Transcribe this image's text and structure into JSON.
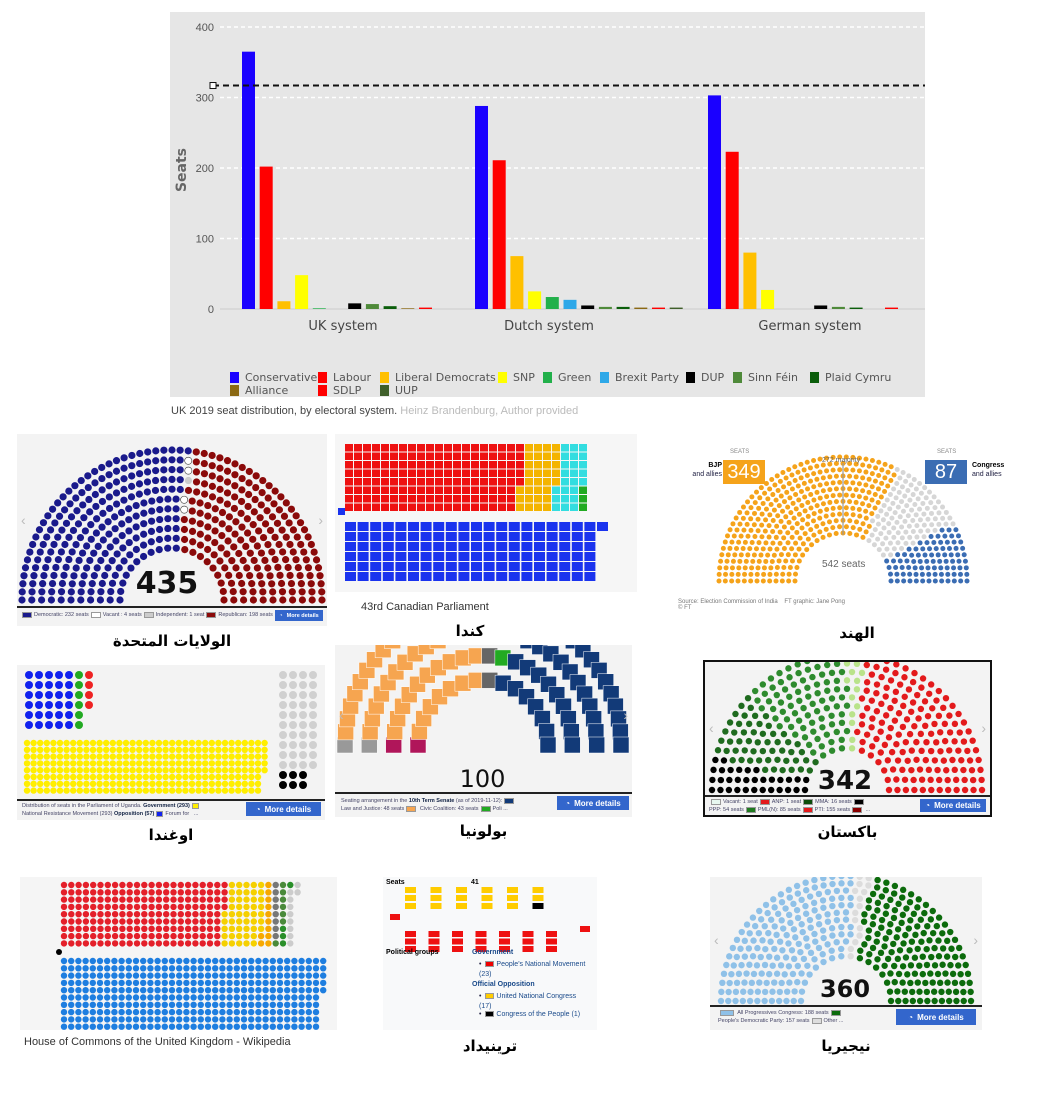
{
  "chart_data": {
    "type": "bar",
    "ylabel": "Seats",
    "ylim": [
      0,
      400
    ],
    "yticks": [
      0,
      100,
      200,
      300,
      400
    ],
    "grid": true,
    "majority_line": 317,
    "legend_position": "bottom",
    "categories": [
      "UK system",
      "Dutch system",
      "German system"
    ],
    "series": [
      {
        "name": "Conservative",
        "color": "#1a00ff",
        "values": [
          365,
          288,
          303
        ]
      },
      {
        "name": "Labour",
        "color": "#ff0000",
        "values": [
          202,
          211,
          223
        ]
      },
      {
        "name": "Liberal Democrats",
        "color": "#ffc000",
        "values": [
          11,
          75,
          80
        ]
      },
      {
        "name": "SNP",
        "color": "#ffff00",
        "values": [
          48,
          25,
          27
        ]
      },
      {
        "name": "Green",
        "color": "#22b04b",
        "values": [
          1,
          17,
          0
        ]
      },
      {
        "name": "Brexit Party",
        "color": "#2ea8e8",
        "values": [
          0,
          13,
          0
        ]
      },
      {
        "name": "DUP",
        "color": "#000000",
        "values": [
          8,
          5,
          5
        ]
      },
      {
        "name": "Sinn Féin",
        "color": "#4f8a3a",
        "values": [
          7,
          3,
          3
        ]
      },
      {
        "name": "Plaid Cymru",
        "color": "#0b5e0b",
        "values": [
          4,
          3,
          2
        ]
      },
      {
        "name": "Alliance",
        "color": "#8b6914",
        "values": [
          1,
          2,
          0
        ]
      },
      {
        "name": "SDLP",
        "color": "#ff0000",
        "values": [
          2,
          2,
          2
        ]
      },
      {
        "name": "UUP",
        "color": "#3f5f2a",
        "values": [
          0,
          2,
          0
        ]
      }
    ],
    "caption": "UK 2019 seat distribution, by electoral system.",
    "credit": "Heinz Brandenburg, Author provided"
  },
  "usa": {
    "total": "435",
    "title": "الولايات المتحدة",
    "more": "More details",
    "legend": [
      "Democratic: 232 seats",
      "Vacant : 4 seats",
      "Independent: 1 seat",
      "Republican: 198 seats"
    ],
    "parties": [
      {
        "color": "#1a1a8c",
        "seats": 232
      },
      {
        "color": "#ffffff",
        "seats": 4
      },
      {
        "color": "#cccccc",
        "seats": 1
      },
      {
        "color": "#8b0a0a",
        "seats": 198
      }
    ]
  },
  "canada": {
    "caption": "43rd Canadian Parliament",
    "title": "كندا",
    "top": [
      {
        "color": "#ee1111",
        "seats": 157
      },
      {
        "color": "#f4b400",
        "seats": 32
      },
      {
        "color": "#33dde0",
        "seats": 24
      },
      {
        "color": "#22aa22",
        "seats": 3
      }
    ],
    "bottom": [
      {
        "color": "#1a33ee",
        "seats": 121
      }
    ],
    "independent": {
      "color": "#1a33ee",
      "seats": 1
    }
  },
  "india": {
    "title": "الهند",
    "seats_label": "SEATS",
    "bjp_value": "349",
    "bjp_label1": "BJP",
    "bjp_label2": "and allies",
    "cong_value": "87",
    "cong_label1": "Congress",
    "cong_label2": "and allies",
    "majority": "272 majority",
    "total": "542 seats",
    "source": "Source: Election Commission of India",
    "graphic": "FT graphic: Jane Pong",
    "copyright": "© FT",
    "parties": [
      {
        "color": "#f5a31a",
        "seats": 349
      },
      {
        "color": "#d6d6d6",
        "seats": 106
      },
      {
        "color": "#3b6db3",
        "seats": 87
      }
    ]
  },
  "uganda": {
    "title": "اوغندا",
    "more": "More details",
    "legend1": "Distribution of seats in the Parliament of Uganda.",
    "gov": "Government",
    "gov_n": "(293)",
    "legend2": "National Resistance Movement",
    "legend2n": "(293)",
    "opp": "Opposition",
    "opp_n": "(57)",
    "legend3": "Forum for",
    "ellipsis": "...",
    "blue": 30,
    "green": 6,
    "red": 4,
    "yellow": 293,
    "grey": 40,
    "black": 6
  },
  "poland": {
    "title": "بولونيا",
    "total": "100",
    "more": "More details",
    "legend1a": "Seating arrangement in the",
    "legend1b": "10th Term Senate",
    "legend1c": "(as of 2019-11-12):",
    "legend2a": "Law and Justice: 48 seats",
    "legend2b": "Civic Coalition: 43 seats",
    "legend2c": "Poli",
    "ellipsis": "...",
    "parties": [
      {
        "color": "#b0165a",
        "seats": 2
      },
      {
        "color": "#999999",
        "seats": 2
      },
      {
        "color": "#f6a550",
        "seats": 48
      },
      {
        "color": "#666666",
        "seats": 2
      },
      {
        "color": "#22aa22",
        "seats": 3
      },
      {
        "color": "#123a78",
        "seats": 43
      }
    ]
  },
  "pakistan": {
    "title": "باكستان",
    "total": "342",
    "more": "More details",
    "legend": [
      "Vacant: 1 seat",
      "ANP: 1 seat",
      "MMA: 16 seats",
      "PPP: 54 seats",
      "PML(N): 85 seats",
      "PTI: 155 seats"
    ],
    "ellipsis": "...",
    "parties": [
      {
        "color": "#000000",
        "seats": 32
      },
      {
        "color": "#1f6b1f",
        "seats": 54
      },
      {
        "color": "#2e8b2e",
        "seats": 85
      },
      {
        "color": "#b9e38a",
        "seats": 16
      },
      {
        "color": "#e31a1c",
        "seats": 155
      }
    ]
  },
  "ukcommons": {
    "caption": "House of Commons of the United Kingdom - Wikipedia",
    "top": [
      {
        "color": "#e4202a",
        "seats": 202
      },
      {
        "color": "#f5d000",
        "seats": 48
      },
      {
        "color": "#f7a800",
        "seats": 11
      },
      {
        "color": "#777777",
        "seats": 8
      },
      {
        "color": "#4a8a3a",
        "seats": 7
      },
      {
        "color": "#2a8f2a",
        "seats": 4
      },
      {
        "color": "#cccccc",
        "seats": 10
      }
    ],
    "bottom": [
      {
        "color": "#1e7ee0",
        "seats": 365
      }
    ]
  },
  "trinidad": {
    "title": "ترينيداد",
    "seats_label": "Seats",
    "seats_value": "41",
    "groups": "Political groups",
    "government": "Government",
    "pnm": "People's National Movement (23)",
    "opposition": "Official Opposition",
    "unc": "United National Congress (17)",
    "cop": "Congress of the People (1)",
    "yellow": 17,
    "black": 1,
    "red": 23
  },
  "nigeria": {
    "title": "نيجيريا",
    "total": "360",
    "more": "More details",
    "legend1": "All Progressives Congress: 188 seats",
    "legend2": "People's Democratic Party: 157 seats",
    "legend3": "Other",
    "ellipsis": "...",
    "parties": [
      {
        "color": "#8fc1e8",
        "seats": 188
      },
      {
        "color": "#dcdcdc",
        "seats": 15
      },
      {
        "color": "#0c6b0c",
        "seats": 157
      }
    ]
  }
}
